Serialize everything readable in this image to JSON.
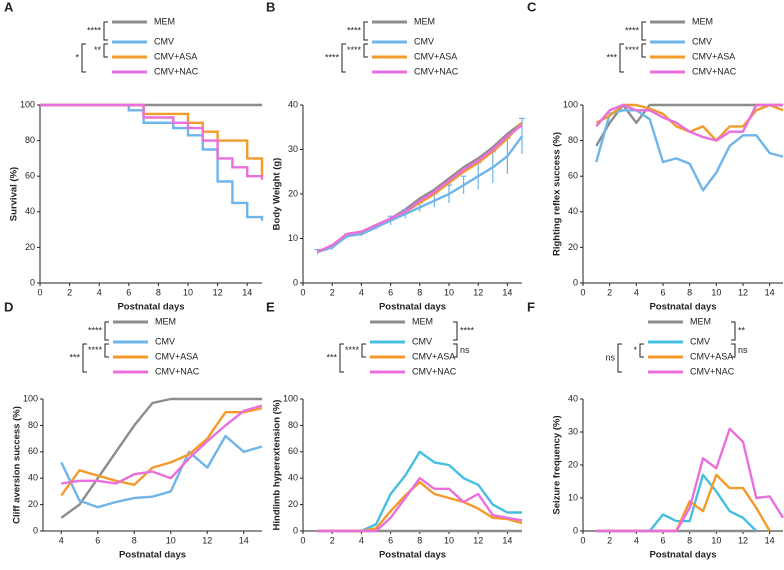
{
  "chart_data": [
    {
      "type": "step",
      "panel": "A",
      "xlabel": "Postnatal days",
      "ylabel": "Survival (%)",
      "x": [
        0,
        1,
        2,
        3,
        4,
        5,
        6,
        7,
        8,
        9,
        10,
        11,
        12,
        13,
        14,
        15
      ],
      "xlim": [
        0,
        15
      ],
      "xticks": [
        0,
        2,
        4,
        6,
        8,
        10,
        12,
        14
      ],
      "ylim": [
        0,
        100
      ],
      "yticks": [
        0,
        20,
        40,
        60,
        80,
        100
      ],
      "series": [
        {
          "name": "MEM",
          "color": "#8c8c8c",
          "values": [
            100,
            100,
            100,
            100,
            100,
            100,
            100,
            100,
            100,
            100,
            100,
            100,
            100,
            100,
            100,
            100
          ]
        },
        {
          "name": "CMV",
          "color": "#6fb5ea",
          "values": [
            100,
            100,
            100,
            100,
            100,
            100,
            97,
            90,
            90,
            87,
            83,
            75,
            57,
            45,
            37,
            35
          ]
        },
        {
          "name": "CMV+ASA",
          "color": "#f39a2b",
          "values": [
            100,
            100,
            100,
            100,
            100,
            100,
            100,
            95,
            95,
            95,
            90,
            85,
            80,
            80,
            70,
            60
          ]
        },
        {
          "name": "CMV+NAC",
          "color": "#e86fdc",
          "values": [
            100,
            100,
            100,
            100,
            100,
            100,
            100,
            93,
            93,
            90,
            87,
            80,
            70,
            65,
            60,
            58
          ]
        }
      ],
      "significance": [
        "****",
        "**",
        "*"
      ]
    },
    {
      "type": "line",
      "panel": "B",
      "xlabel": "Postnatal days",
      "ylabel": "Body Weight (g)",
      "x": [
        1,
        2,
        3,
        4,
        5,
        6,
        7,
        8,
        9,
        10,
        11,
        12,
        13,
        14,
        15
      ],
      "xlim": [
        0,
        15
      ],
      "xticks": [
        0,
        2,
        4,
        6,
        8,
        10,
        12,
        14
      ],
      "ylim": [
        0,
        40
      ],
      "yticks": [
        0,
        10,
        20,
        30,
        40
      ],
      "series": [
        {
          "name": "MEM",
          "color": "#8c8c8c",
          "values": [
            7,
            8,
            11,
            11.5,
            13,
            14.5,
            16.5,
            19,
            21,
            23.5,
            26,
            28,
            30.5,
            33.5,
            36
          ]
        },
        {
          "name": "CMV",
          "color": "#6fb5ea",
          "values": [
            7,
            8,
            10.5,
            11,
            12.5,
            14,
            15.5,
            17,
            18.5,
            20,
            22,
            24,
            26,
            28.5,
            33
          ],
          "errors": [
            0.5,
            0.5,
            0.5,
            0.5,
            0.5,
            1,
            1,
            1,
            1.5,
            2,
            2,
            3,
            3.5,
            4,
            4
          ]
        },
        {
          "name": "CMV+ASA",
          "color": "#f39a2b",
          "values": [
            7,
            8.5,
            11,
            11.5,
            13,
            14.5,
            16,
            18,
            20,
            22.5,
            25,
            27,
            29.5,
            32.5,
            36
          ]
        },
        {
          "name": "CMV+NAC",
          "color": "#e86fdc",
          "values": [
            7,
            8.5,
            11,
            11.5,
            13,
            14.5,
            16,
            18.5,
            20.5,
            23,
            25.5,
            27.5,
            30,
            33,
            35.5
          ]
        }
      ],
      "significance": [
        "****",
        "****",
        "****"
      ]
    },
    {
      "type": "line",
      "panel": "C",
      "xlabel": "Postnatal days",
      "ylabel": "Righting reflex success (%)",
      "x": [
        1,
        2,
        3,
        4,
        5,
        6,
        7,
        8,
        9,
        10,
        11,
        12,
        13,
        14,
        15
      ],
      "xlim": [
        0,
        15
      ],
      "xticks": [
        0,
        2,
        4,
        6,
        8,
        10,
        12,
        14
      ],
      "ylim": [
        0,
        100
      ],
      "yticks": [
        0,
        20,
        40,
        60,
        80,
        100
      ],
      "series": [
        {
          "name": "MEM",
          "color": "#8c8c8c",
          "values": [
            77,
            90,
            100,
            90,
            100,
            100,
            100,
            100,
            100,
            100,
            100,
            100,
            100,
            100,
            100
          ]
        },
        {
          "name": "CMV",
          "color": "#6fb5ea",
          "values": [
            68,
            95,
            97,
            97,
            92,
            68,
            70,
            67,
            52,
            62,
            77,
            83,
            83,
            73,
            71
          ]
        },
        {
          "name": "CMV+ASA",
          "color": "#f39a2b",
          "values": [
            90,
            94,
            100,
            100,
            98,
            95,
            88,
            85,
            88,
            80,
            88,
            88,
            97,
            100,
            97
          ]
        },
        {
          "name": "CMV+NAC",
          "color": "#e86fdc",
          "values": [
            88,
            97,
            100,
            97,
            97,
            93,
            90,
            85,
            82,
            80,
            85,
            85,
            100,
            100,
            100
          ]
        }
      ],
      "significance": [
        "****",
        "****",
        "***"
      ]
    },
    {
      "type": "line",
      "panel": "D",
      "xlabel": "Postnatal days",
      "ylabel": "Cliff aversion success (%)",
      "x": [
        4,
        5,
        6,
        7,
        8,
        9,
        10,
        11,
        12,
        13,
        14,
        15
      ],
      "xlim": [
        3,
        15
      ],
      "xticks": [
        4,
        6,
        8,
        10,
        12,
        14
      ],
      "ylim": [
        0,
        100
      ],
      "yticks": [
        0,
        20,
        40,
        60,
        80,
        100
      ],
      "series": [
        {
          "name": "MEM",
          "color": "#8c8c8c",
          "values": [
            10,
            20,
            40,
            60,
            80,
            97,
            100,
            100,
            100,
            100,
            100,
            100
          ]
        },
        {
          "name": "CMV",
          "color": "#6fb5ea",
          "values": [
            52,
            23,
            18,
            22,
            25,
            26,
            30,
            60,
            48,
            72,
            60,
            64
          ]
        },
        {
          "name": "CMV+ASA",
          "color": "#f39a2b",
          "values": [
            27,
            46,
            42,
            38,
            35,
            48,
            52,
            58,
            70,
            90,
            90,
            93
          ]
        },
        {
          "name": "CMV+NAC",
          "color": "#e86fdc",
          "values": [
            36,
            38,
            38,
            36,
            43,
            45,
            40,
            55,
            68,
            80,
            91,
            95
          ]
        }
      ],
      "significance": [
        "****",
        "****",
        "***"
      ]
    },
    {
      "type": "line",
      "panel": "E",
      "xlabel": "Postnatal days",
      "ylabel": "Hindlimb hyperextension (%)",
      "x": [
        1,
        2,
        3,
        4,
        5,
        6,
        7,
        8,
        9,
        10,
        11,
        12,
        13,
        14,
        15
      ],
      "xlim": [
        0,
        15
      ],
      "xticks": [
        0,
        2,
        4,
        6,
        8,
        10,
        12,
        14
      ],
      "ylim": [
        0,
        100
      ],
      "yticks": [
        0,
        20,
        40,
        60,
        80,
        100
      ],
      "series": [
        {
          "name": "MEM",
          "color": "#8c8c8c",
          "values": [
            0,
            0,
            0,
            0,
            0,
            0,
            0,
            0,
            0,
            0,
            0,
            0,
            0,
            0,
            0
          ]
        },
        {
          "name": "CMV",
          "color": "#45bfe0",
          "values": [
            0,
            0,
            0,
            0,
            5,
            28,
            42,
            60,
            52,
            50,
            40,
            35,
            20,
            14,
            14
          ]
        },
        {
          "name": "CMV+ASA",
          "color": "#f39a2b",
          "values": [
            0,
            0,
            0,
            0,
            2,
            15,
            27,
            37,
            28,
            25,
            22,
            17,
            10,
            9,
            6
          ]
        },
        {
          "name": "CMV+NAC",
          "color": "#e86fdc",
          "values": [
            0,
            0,
            0,
            0,
            0,
            10,
            25,
            40,
            32,
            32,
            22,
            28,
            12,
            10,
            8
          ]
        }
      ],
      "significance": [
        "****",
        "ns",
        "****",
        "***"
      ]
    },
    {
      "type": "line",
      "panel": "F",
      "xlabel": "Postnatal days",
      "ylabel": "Seizure frequency (%)",
      "x": [
        1,
        2,
        3,
        4,
        5,
        6,
        7,
        8,
        9,
        10,
        11,
        12,
        13,
        14,
        15
      ],
      "xlim": [
        0,
        15
      ],
      "xticks": [
        0,
        2,
        4,
        6,
        8,
        10,
        12,
        14
      ],
      "ylim": [
        0,
        40
      ],
      "yticks": [
        0,
        10,
        20,
        30,
        40
      ],
      "series": [
        {
          "name": "MEM",
          "color": "#8c8c8c",
          "values": [
            0,
            0,
            0,
            0,
            0,
            0,
            0,
            0,
            0,
            0,
            0,
            0,
            0,
            null,
            null
          ]
        },
        {
          "name": "CMV",
          "color": "#45bfe0",
          "values": [
            0,
            0,
            0,
            0,
            0,
            5,
            3,
            3,
            17,
            12,
            6,
            4,
            0,
            null,
            null
          ]
        },
        {
          "name": "CMV+ASA",
          "color": "#f39a2b",
          "values": [
            0,
            0,
            0,
            0,
            0,
            0,
            0,
            9,
            6,
            17,
            13,
            13,
            7,
            0,
            null
          ]
        },
        {
          "name": "CMV+NAC",
          "color": "#e86fdc",
          "values": [
            0,
            0,
            0,
            0,
            0,
            0,
            0,
            7,
            22,
            19,
            31,
            27,
            10,
            10.5,
            4
          ]
        }
      ],
      "significance": [
        "**",
        "ns",
        "*",
        "ns"
      ]
    }
  ]
}
